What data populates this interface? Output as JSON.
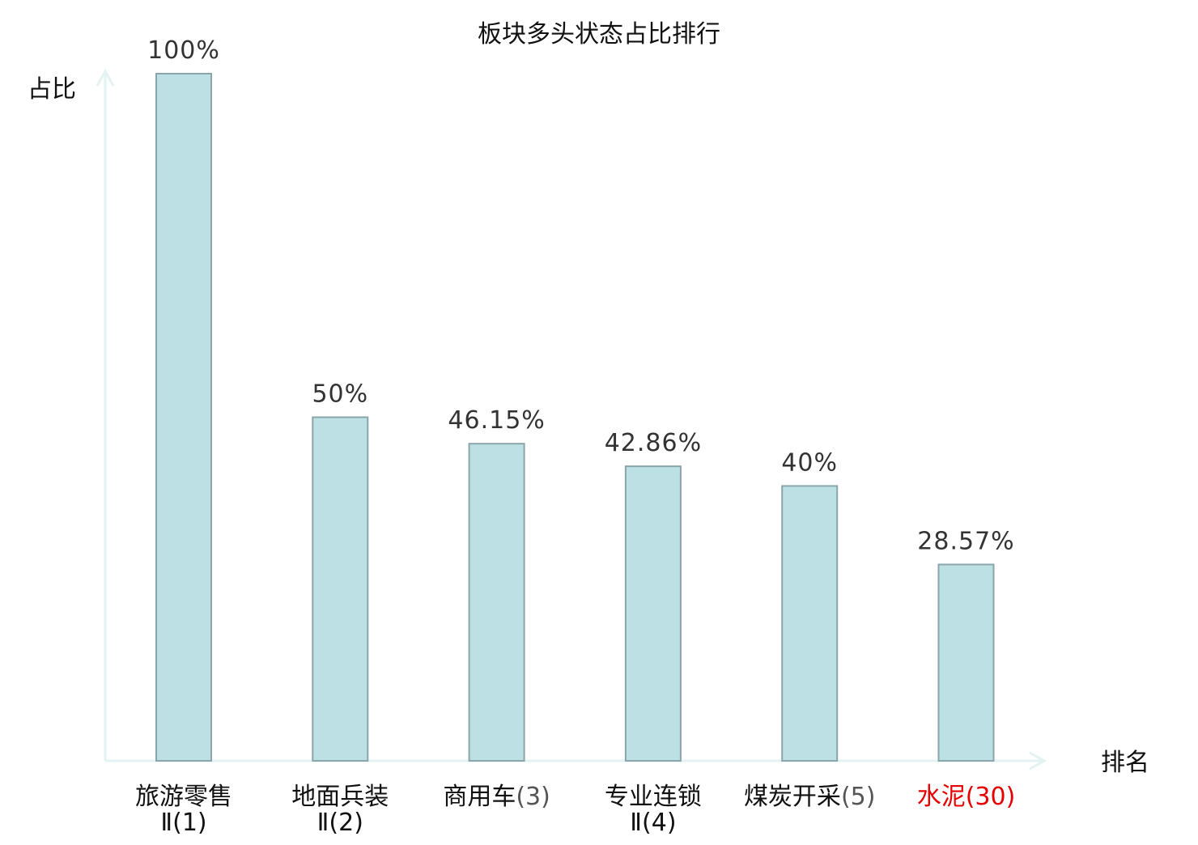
{
  "chart_data": {
    "type": "bar",
    "title": "板块多头状态占比排行",
    "ylabel": "占比",
    "xlabel": "排名",
    "ylim": [
      0,
      100
    ],
    "grid": false,
    "legend": "none",
    "categories": [
      {
        "name": "旅游零售",
        "rank": "Ⅱ(1)"
      },
      {
        "name": "地面兵装",
        "rank": "Ⅱ(2)"
      },
      {
        "name": "商用车",
        "rank": "(3)"
      },
      {
        "name": "专业连锁",
        "rank": "Ⅱ(4)"
      },
      {
        "name": "煤炭开采",
        "rank": "(5)"
      },
      {
        "name": "水泥",
        "rank": "(30)"
      }
    ],
    "values": [
      100,
      50,
      46.15,
      42.86,
      40,
      28.57
    ],
    "value_labels": [
      "100%",
      "50%",
      "46.15%",
      "42.86%",
      "40%",
      "28.57%"
    ],
    "highlight_index": 5,
    "colors": {
      "bar_fill": "#bce0e3",
      "bar_stroke": "#8aa6aa",
      "axis": "#e2f3f1",
      "highlight_text": "#e60000",
      "text": "#111111",
      "value_text": "#333333"
    }
  }
}
